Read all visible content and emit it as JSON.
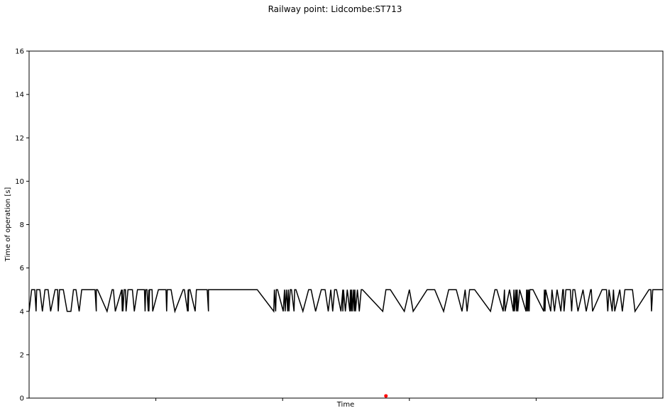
{
  "chart_data": {
    "type": "line",
    "title": "Railway point: Lidcombe:ST713",
    "xlabel": "Time",
    "ylabel": "Time of operation [s]",
    "ylim": [
      0,
      16
    ],
    "yticks": [
      0,
      2,
      4,
      6,
      8,
      10,
      12,
      14,
      16
    ],
    "grid": false,
    "xlim": [
      0,
      1
    ],
    "series": [
      {
        "color": "#000000",
        "x": [
          0.0,
          0.004,
          0.009,
          0.011,
          0.012,
          0.017,
          0.021,
          0.025,
          0.03,
          0.034,
          0.041,
          0.045,
          0.046,
          0.048,
          0.054,
          0.06,
          0.066,
          0.07,
          0.074,
          0.079,
          0.083,
          0.104,
          0.106,
          0.106,
          0.108,
          0.123,
          0.131,
          0.133,
          0.136,
          0.146,
          0.147,
          0.147,
          0.148,
          0.15,
          0.152,
          0.153,
          0.156,
          0.163,
          0.166,
          0.171,
          0.182,
          0.183,
          0.184,
          0.186,
          0.188,
          0.189,
          0.189,
          0.19,
          0.194,
          0.195,
          0.204,
          0.216,
          0.217,
          0.218,
          0.224,
          0.23,
          0.243,
          0.245,
          0.25,
          0.251,
          0.251,
          0.252,
          0.254,
          0.262,
          0.264,
          0.281,
          0.283,
          0.283,
          0.315,
          0.36,
          0.386,
          0.387,
          0.389,
          0.39,
          0.392,
          0.401,
          0.403,
          0.404,
          0.406,
          0.408,
          0.409,
          0.41,
          0.412,
          0.414,
          0.418,
          0.419,
          0.421,
          0.432,
          0.441,
          0.445,
          0.452,
          0.461,
          0.467,
          0.472,
          0.476,
          0.479,
          0.482,
          0.485,
          0.492,
          0.495,
          0.495,
          0.496,
          0.499,
          0.502,
          0.506,
          0.507,
          0.508,
          0.509,
          0.51,
          0.512,
          0.513,
          0.514,
          0.515,
          0.518,
          0.521,
          0.524,
          0.526,
          0.558,
          0.563,
          0.57,
          0.592,
          0.6,
          0.606,
          0.628,
          0.64,
          0.654,
          0.662,
          0.674,
          0.683,
          0.688,
          0.691,
          0.695,
          0.703,
          0.728,
          0.735,
          0.738,
          0.748,
          0.75,
          0.751,
          0.758,
          0.764,
          0.765,
          0.766,
          0.768,
          0.769,
          0.77,
          0.771,
          0.774,
          0.784,
          0.785,
          0.785,
          0.786,
          0.787,
          0.788,
          0.789,
          0.79,
          0.795,
          0.812,
          0.813,
          0.814,
          0.815,
          0.823,
          0.825,
          0.829,
          0.833,
          0.839,
          0.842,
          0.843,
          0.844,
          0.847,
          0.854,
          0.856,
          0.858,
          0.861,
          0.866,
          0.874,
          0.879,
          0.886,
          0.887,
          0.889,
          0.904,
          0.911,
          0.913,
          0.915,
          0.92,
          0.922,
          0.924,
          0.932,
          0.936,
          0.94,
          0.952,
          0.956,
          0.978,
          0.981,
          0.982,
          0.984,
          1.0
        ],
        "values": [
          4,
          5,
          5,
          4,
          5,
          5,
          4,
          5,
          5,
          4,
          5,
          5,
          4,
          5,
          5,
          4,
          4,
          5,
          5,
          4,
          5,
          5,
          4,
          5,
          5,
          4,
          5,
          5,
          4,
          5,
          4,
          5,
          4,
          5,
          5,
          4,
          5,
          5,
          4,
          5,
          5,
          4,
          5,
          5,
          4,
          5,
          4,
          5,
          5,
          4,
          5,
          5,
          4,
          5,
          5,
          4,
          5,
          5,
          4,
          5,
          4,
          5,
          5,
          4,
          5,
          5,
          4,
          5,
          5,
          5,
          4,
          5,
          4,
          5,
          5,
          4,
          5,
          4,
          5,
          4,
          5,
          4,
          5,
          5,
          4,
          5,
          5,
          4,
          5,
          5,
          4,
          5,
          5,
          4,
          5,
          4,
          5,
          5,
          4,
          5,
          4,
          5,
          4,
          5,
          4,
          5,
          4,
          5,
          4,
          5,
          4,
          5,
          4,
          5,
          4,
          5,
          5,
          4,
          5,
          5,
          4,
          5,
          4,
          5,
          5,
          4,
          5,
          5,
          4,
          5,
          4,
          5,
          5,
          4,
          5,
          5,
          4,
          5,
          4,
          5,
          4,
          5,
          4,
          5,
          4,
          5,
          4,
          5,
          4,
          5,
          4,
          5,
          4,
          5,
          4,
          5,
          5,
          4,
          5,
          4,
          5,
          4,
          5,
          4,
          5,
          4,
          5,
          5,
          4,
          5,
          5,
          4,
          5,
          5,
          4,
          5,
          4,
          5,
          5,
          4,
          5,
          5,
          4,
          5,
          4,
          5,
          4,
          5,
          4,
          5,
          5,
          4,
          5,
          5,
          4,
          5,
          5
        ]
      },
      {
        "color": "#ff0000",
        "marker": "point",
        "x": [
          0.563
        ],
        "values": [
          0.1
        ]
      }
    ]
  }
}
